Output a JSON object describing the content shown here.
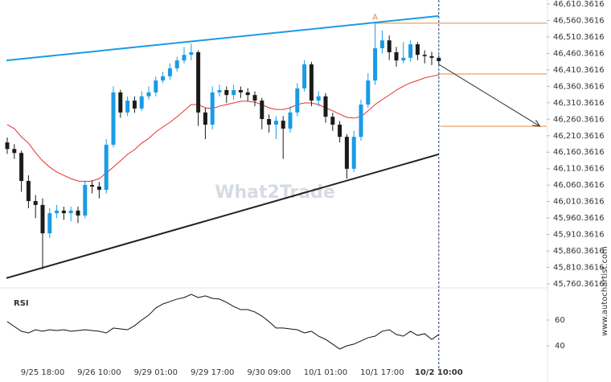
{
  "chart_data": {
    "type": "candlestick",
    "categories": [
      null,
      null,
      null,
      null,
      null,
      "9/25 18:00",
      null,
      null,
      null,
      null,
      null,
      null,
      null,
      "9/26 10:00",
      null,
      null,
      null,
      null,
      null,
      null,
      null,
      "9/29 01:00",
      null,
      null,
      null,
      null,
      null,
      null,
      null,
      "9/29 17:00",
      null,
      null,
      null,
      null,
      null,
      null,
      null,
      "9/30 09:00",
      null,
      null,
      null,
      null,
      null,
      null,
      null,
      "10/1 01:00",
      null,
      null,
      null,
      null,
      null,
      null,
      null,
      "10/1 17:00",
      null,
      null,
      null,
      null,
      null,
      null,
      null,
      "10/2 10:00"
    ],
    "open": [
      46190,
      46170,
      46158,
      46073,
      46012,
      46000,
      45914,
      45975,
      45983,
      45975,
      45983,
      45968,
      46061,
      46056,
      46046,
      46183,
      46342,
      46281,
      46317,
      46293,
      46330,
      46342,
      46378,
      46391,
      46415,
      46439,
      46456,
      46464,
      46281,
      46244,
      46342,
      46349,
      46334,
      46349,
      46342,
      46334,
      46317,
      46261,
      46244,
      46256,
      46232,
      46281,
      46354,
      46427,
      46317,
      46330,
      46268,
      46244,
      46207,
      46110,
      46207,
      46305,
      46378,
      46476,
      46500,
      46464,
      46439,
      46447,
      46488,
      46456,
      46452,
      46447
    ],
    "high": [
      46205,
      46185,
      46165,
      46090,
      46030,
      46020,
      45990,
      46000,
      45995,
      45995,
      45995,
      46075,
      46075,
      46070,
      46200,
      46360,
      46350,
      46330,
      46330,
      46345,
      46360,
      46390,
      46405,
      46430,
      46450,
      46480,
      46490,
      46470,
      46295,
      46360,
      46365,
      46360,
      46365,
      46360,
      46355,
      46345,
      46325,
      46275,
      46270,
      46270,
      46300,
      46370,
      46440,
      46435,
      46345,
      46340,
      46280,
      46255,
      46215,
      46225,
      46320,
      46400,
      46556,
      46530,
      46515,
      46480,
      46495,
      46500,
      46495,
      46470,
      46465,
      46455
    ],
    "low": [
      46155,
      46140,
      46040,
      45990,
      45960,
      45805,
      45900,
      45960,
      45955,
      45950,
      45945,
      45960,
      46035,
      46020,
      46035,
      46175,
      46265,
      46270,
      46280,
      46285,
      46320,
      46330,
      46370,
      46380,
      46405,
      46430,
      46440,
      46240,
      46200,
      46230,
      46330,
      46310,
      46320,
      46325,
      46315,
      46300,
      46230,
      46220,
      46200,
      46140,
      46220,
      46270,
      46345,
      46300,
      46300,
      46250,
      46225,
      46190,
      46080,
      46100,
      46195,
      46295,
      46365,
      46460,
      46440,
      46420,
      46430,
      46435,
      46440,
      46430,
      46425,
      46425
    ],
    "close": [
      46170,
      46158,
      46073,
      46012,
      46000,
      45914,
      45975,
      45983,
      45975,
      45983,
      45968,
      46061,
      46056,
      46046,
      46183,
      46342,
      46281,
      46317,
      46293,
      46330,
      46342,
      46378,
      46391,
      46415,
      46439,
      46456,
      46464,
      46281,
      46244,
      46342,
      46349,
      46334,
      46349,
      46342,
      46334,
      46317,
      46261,
      46244,
      46256,
      46232,
      46281,
      46354,
      46427,
      46317,
      46330,
      46268,
      46244,
      46207,
      46110,
      46207,
      46305,
      46378,
      46476,
      46500,
      46464,
      46439,
      46447,
      46488,
      46456,
      46452,
      46447,
      46437
    ],
    "up_color": "#1a9be6",
    "down_color": "#1b1b1b",
    "ma": {
      "color": "#e8302a",
      "values": [
        46244,
        46232,
        46207,
        46188,
        46159,
        46134,
        46115,
        46100,
        46090,
        46080,
        46073,
        46071,
        46073,
        46080,
        46097,
        46115,
        46134,
        46154,
        46168,
        46188,
        46202,
        46222,
        46237,
        46251,
        46268,
        46286,
        46305,
        46305,
        46295,
        46293,
        46300,
        46305,
        46310,
        46315,
        46315,
        46312,
        46305,
        46295,
        46290,
        46290,
        46295,
        46305,
        46310,
        46310,
        46305,
        46295,
        46286,
        46276,
        46266,
        46264,
        46268,
        46286,
        46305,
        46320,
        46334,
        46349,
        46361,
        46371,
        46378,
        46386,
        46391,
        46395
      ]
    },
    "ylim": [
      45760.3616,
      46610.3616
    ],
    "yticks": [
      {
        "value": 46610.3616,
        "label": "46,610.3616"
      },
      {
        "value": 46560.3616,
        "label": "46,560.3616"
      },
      {
        "value": 46510.3616,
        "label": "46,510.3616"
      },
      {
        "value": 46460.3616,
        "label": "46,460.3616"
      },
      {
        "value": 46410.3616,
        "label": "46,410.3616"
      },
      {
        "value": 46360.3616,
        "label": "46,360.3616"
      },
      {
        "value": 46310.3616,
        "label": "46,310.3616"
      },
      {
        "value": 46260.3616,
        "label": "46,260.3616"
      },
      {
        "value": 46210.3616,
        "label": "46,210.3616"
      },
      {
        "value": 46160.3616,
        "label": "46,160.3616"
      },
      {
        "value": 46110.3616,
        "label": "46,110.3616"
      },
      {
        "value": 46060.3616,
        "label": "46,060.3616"
      },
      {
        "value": 46010.3616,
        "label": "46,010.3616"
      },
      {
        "value": 45960.3616,
        "label": "45,960.3616"
      },
      {
        "value": 45910.3616,
        "label": "45,910.3616"
      },
      {
        "value": 45860.3616,
        "label": "45,860.3616"
      },
      {
        "value": 45810.3616,
        "label": "45,810.3616"
      },
      {
        "value": 45760.3616,
        "label": "45,760.3616"
      }
    ],
    "trendlines": [
      {
        "color": "#1a9be6",
        "start": [
          0,
          46439
        ],
        "end": [
          61,
          46574
        ]
      },
      {
        "color": "#222222",
        "start": [
          0,
          45778
        ],
        "end": [
          61,
          46154
        ]
      }
    ],
    "forecast_arrow": {
      "color": "#333333",
      "start": [
        61,
        46427
      ],
      "end": [
        75.3,
        46239
      ]
    },
    "levels": [
      {
        "color": "#e8873a",
        "value": 46552,
        "x_start": 52
      },
      {
        "color": "#e8873a",
        "value": 46398,
        "x_start": 61
      },
      {
        "color": "#e8873a",
        "value": 46239,
        "x_start": 61.2
      }
    ],
    "peak_marker": {
      "label": "A",
      "x": 52,
      "value": 46556
    },
    "rsi": {
      "label": "RSI",
      "color": "#111111",
      "values": [
        58.8,
        55,
        51.3,
        50,
        52.5,
        51.3,
        52.5,
        51.9,
        52.5,
        51.3,
        51.9,
        52.5,
        51.9,
        51.3,
        50,
        53.8,
        53.1,
        52.5,
        55.6,
        60,
        63.8,
        69.4,
        72.5,
        74.4,
        76.3,
        77.5,
        80,
        77.5,
        78.8,
        76.9,
        76.3,
        73.8,
        70.6,
        68.1,
        68.1,
        66.3,
        63.1,
        58.8,
        53.8,
        53.8,
        53.1,
        52.5,
        50,
        51.3,
        47.5,
        45,
        41.3,
        37.5,
        40,
        41.3,
        43.8,
        46.3,
        47.5,
        51.3,
        52.5,
        48.8,
        47.5,
        51.3,
        48.1,
        49.4,
        45,
        48.8
      ],
      "ylim": [
        20,
        80
      ],
      "yticks": [
        60,
        40
      ]
    },
    "watermark": "What2Trade",
    "source": "www.autochartist.com"
  }
}
